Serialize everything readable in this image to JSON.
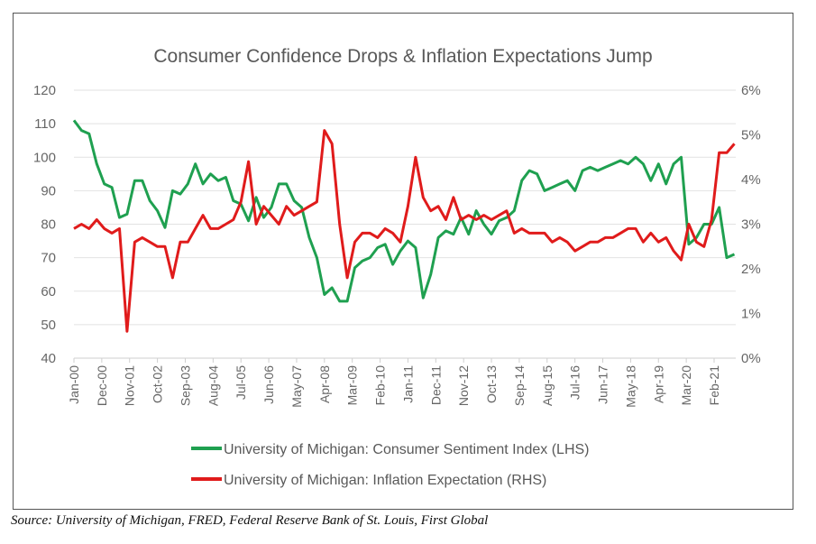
{
  "chart_data": {
    "type": "line",
    "title": "Consumer Confidence Drops & Inflation Expectations Jump",
    "xlabel": "",
    "ylabel": "",
    "y2label": "",
    "ylim": [
      40,
      120
    ],
    "y2lim": [
      0,
      6
    ],
    "yticks": [
      "40",
      "50",
      "60",
      "70",
      "80",
      "90",
      "100",
      "110",
      "120"
    ],
    "y2ticks": [
      "0%",
      "1%",
      "2%",
      "3%",
      "4%",
      "5%",
      "6%"
    ],
    "xticks": [
      "Jan-00",
      "Dec-00",
      "Nov-01",
      "Oct-02",
      "Sep-03",
      "Aug-04",
      "Jul-05",
      "Jun-06",
      "May-07",
      "Apr-08",
      "Mar-09",
      "Feb-10",
      "Jan-11",
      "Dec-11",
      "Nov-12",
      "Oct-13",
      "Sep-14",
      "Aug-15",
      "Jul-16",
      "Jun-17",
      "May-18",
      "Apr-19",
      "Mar-20",
      "Feb-21"
    ],
    "grid": "horizontal",
    "legend_placement": "bottom",
    "x": [
      "2000-01",
      "2000-04",
      "2000-07",
      "2000-10",
      "2001-01",
      "2001-04",
      "2001-07",
      "2001-10",
      "2002-01",
      "2002-04",
      "2002-07",
      "2002-10",
      "2003-01",
      "2003-04",
      "2003-07",
      "2003-10",
      "2004-01",
      "2004-04",
      "2004-07",
      "2004-10",
      "2005-01",
      "2005-04",
      "2005-07",
      "2005-10",
      "2006-01",
      "2006-04",
      "2006-07",
      "2006-10",
      "2007-01",
      "2007-04",
      "2007-07",
      "2007-10",
      "2008-01",
      "2008-04",
      "2008-07",
      "2008-10",
      "2009-01",
      "2009-04",
      "2009-07",
      "2009-10",
      "2010-01",
      "2010-04",
      "2010-07",
      "2010-10",
      "2011-01",
      "2011-04",
      "2011-07",
      "2011-10",
      "2012-01",
      "2012-04",
      "2012-07",
      "2012-10",
      "2013-01",
      "2013-04",
      "2013-07",
      "2013-10",
      "2014-01",
      "2014-04",
      "2014-07",
      "2014-10",
      "2015-01",
      "2015-04",
      "2015-07",
      "2015-10",
      "2016-01",
      "2016-04",
      "2016-07",
      "2016-10",
      "2017-01",
      "2017-04",
      "2017-07",
      "2017-10",
      "2018-01",
      "2018-04",
      "2018-07",
      "2018-10",
      "2019-01",
      "2019-04",
      "2019-07",
      "2019-10",
      "2020-01",
      "2020-04",
      "2020-07",
      "2020-10",
      "2021-01",
      "2021-04",
      "2021-07",
      "2021-10"
    ],
    "series": [
      {
        "name": "University of Michigan: Consumer Sentiment Index (LHS)",
        "axis": "left",
        "color": "#1fa050",
        "values": [
          111,
          108,
          107,
          98,
          92,
          91,
          82,
          83,
          93,
          93,
          87,
          84,
          79,
          90,
          89,
          92,
          98,
          92,
          95,
          93,
          94,
          87,
          86,
          81,
          88,
          82,
          85,
          92,
          92,
          87,
          85,
          76,
          70,
          59,
          61,
          57,
          57,
          67,
          69,
          70,
          73,
          74,
          68,
          72,
          75,
          73,
          58,
          65,
          76,
          78,
          77,
          82,
          77,
          84,
          80,
          77,
          81,
          82,
          84,
          93,
          96,
          95,
          90,
          91,
          92,
          93,
          90,
          96,
          97,
          96,
          97,
          98,
          99,
          98,
          100,
          98,
          93,
          98,
          92,
          98,
          100,
          74,
          76,
          80,
          80,
          85,
          70,
          71
        ]
      },
      {
        "name": "University of Michigan: Inflation Expectation (RHS)",
        "axis": "right",
        "color": "#e01b1b",
        "values": [
          2.9,
          3.0,
          2.9,
          3.1,
          2.9,
          2.8,
          2.9,
          0.6,
          2.6,
          2.7,
          2.6,
          2.5,
          2.5,
          1.8,
          2.6,
          2.6,
          2.9,
          3.2,
          2.9,
          2.9,
          3.0,
          3.1,
          3.5,
          4.4,
          3.0,
          3.4,
          3.2,
          3.0,
          3.4,
          3.2,
          3.3,
          3.4,
          3.5,
          5.1,
          4.8,
          3.0,
          1.8,
          2.6,
          2.8,
          2.8,
          2.7,
          2.9,
          2.8,
          2.6,
          3.4,
          4.5,
          3.6,
          3.3,
          3.4,
          3.1,
          3.6,
          3.1,
          3.2,
          3.1,
          3.2,
          3.1,
          3.2,
          3.3,
          2.8,
          2.9,
          2.8,
          2.8,
          2.8,
          2.6,
          2.7,
          2.6,
          2.4,
          2.5,
          2.6,
          2.6,
          2.7,
          2.7,
          2.8,
          2.9,
          2.9,
          2.6,
          2.8,
          2.6,
          2.7,
          2.4,
          2.2,
          3.0,
          2.6,
          2.5,
          3.1,
          4.6,
          4.6,
          4.8
        ]
      }
    ]
  },
  "source": "Source: University of Michigan, FRED, Federal Reserve Bank of St. Louis, First Global"
}
